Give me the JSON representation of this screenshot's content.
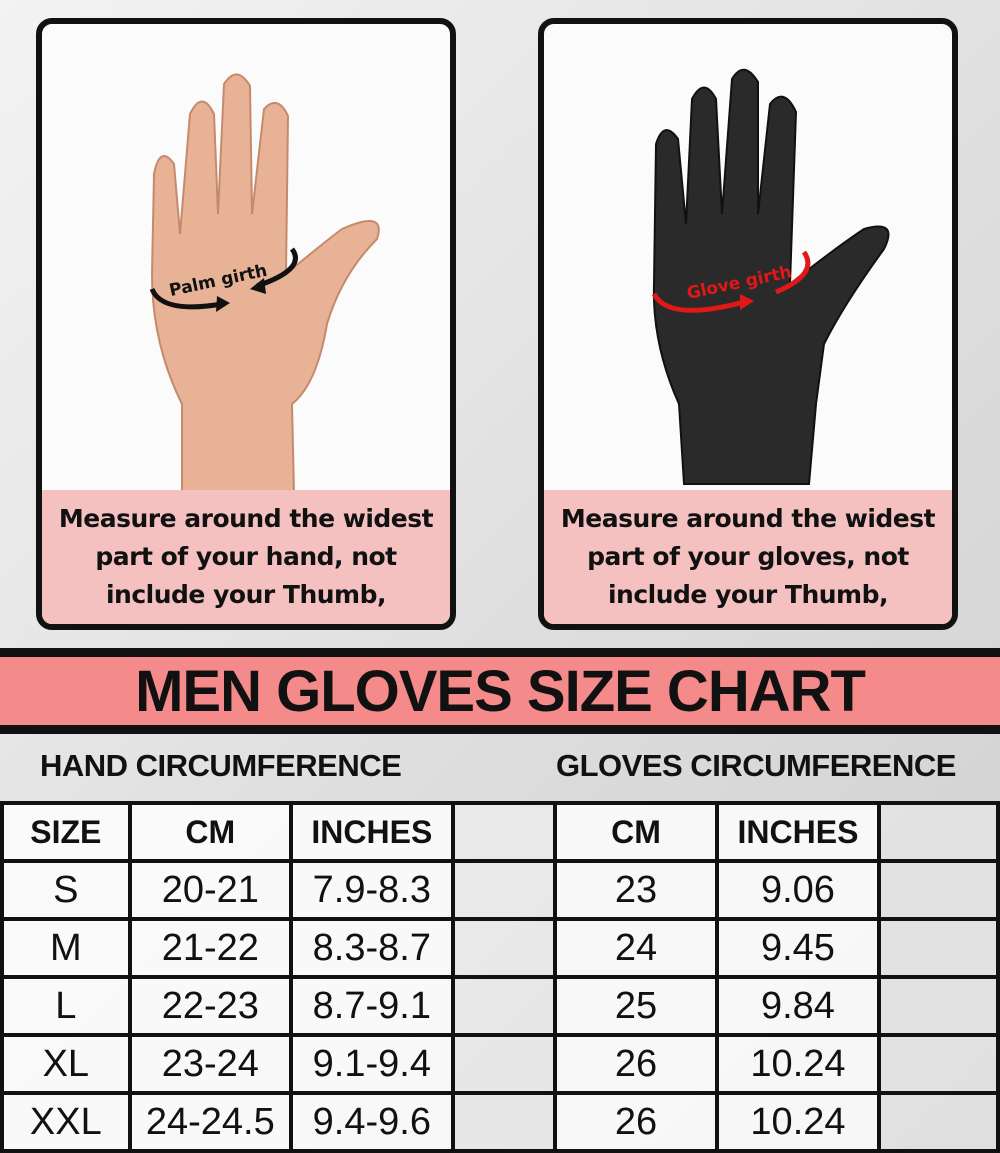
{
  "left_panel": {
    "label": "Palm girth",
    "caption": "Measure around the widest part of your hand, not include your Thumb,"
  },
  "right_panel": {
    "label": "Glove girth",
    "caption": "Measure around the widest part of your gloves, not include your Thumb,"
  },
  "title": "MEN GLOVES SIZE CHART",
  "hand_heading": "HAND CIRCUMFERENCE",
  "gloves_heading": "GLOVES CIRCUMFERENCE",
  "table": {
    "headers": [
      "SIZE",
      "CM",
      "INCHES",
      "CM",
      "INCHES"
    ],
    "rows": [
      [
        "S",
        "20-21",
        "7.9-8.3",
        "23",
        "9.06"
      ],
      [
        "M",
        "21-22",
        "8.3-8.7",
        "24",
        "9.45"
      ],
      [
        "L",
        "22-23",
        "8.7-9.1",
        "25",
        "9.84"
      ],
      [
        "XL",
        "23-24",
        "9.1-9.4",
        "26",
        "10.24"
      ],
      [
        "XXL",
        "24-24.5",
        "9.4-9.6",
        "26",
        "10.24"
      ]
    ]
  },
  "colors": {
    "accent_pink": "#f48a8a",
    "caption_pink": "#f4c0c0",
    "glove_arrow": "#e01818"
  }
}
